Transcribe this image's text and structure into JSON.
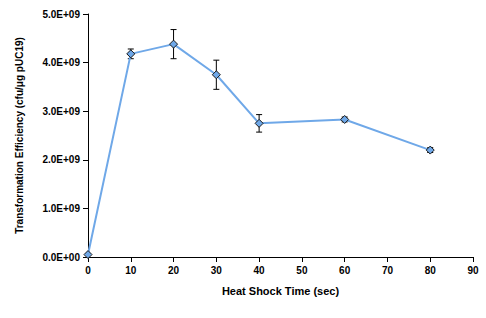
{
  "chart_data": {
    "type": "line",
    "x_label": "Heat Shock Time (sec)",
    "y_label": "Transformation Efficiency (cfu/μg pUC19)",
    "x": [
      0,
      10,
      20,
      30,
      40,
      60,
      80
    ],
    "series": [
      {
        "color": "#6fa8e8",
        "marker": "diamond",
        "values": [
          50000000,
          4180000000,
          4380000000,
          3750000000,
          2750000000,
          2830000000,
          2200000000
        ],
        "errors": [
          0,
          100000000,
          300000000,
          300000000,
          180000000,
          50000000,
          50000000
        ]
      }
    ],
    "xlim": [
      0,
      90
    ],
    "xticks": [
      0,
      10,
      20,
      30,
      40,
      50,
      60,
      70,
      80,
      90
    ],
    "ylim": [
      0,
      5000000000
    ],
    "yticks": [
      {
        "value": 0,
        "label": "0.0E+00"
      },
      {
        "value": 1000000000,
        "label": "1.0E+09"
      },
      {
        "value": 2000000000,
        "label": "2.0E+09"
      },
      {
        "value": 3000000000,
        "label": "3.0E+09"
      },
      {
        "value": 4000000000,
        "label": "4.0E+09"
      },
      {
        "value": 5000000000,
        "label": "5.0E+09"
      }
    ],
    "grid": false
  }
}
